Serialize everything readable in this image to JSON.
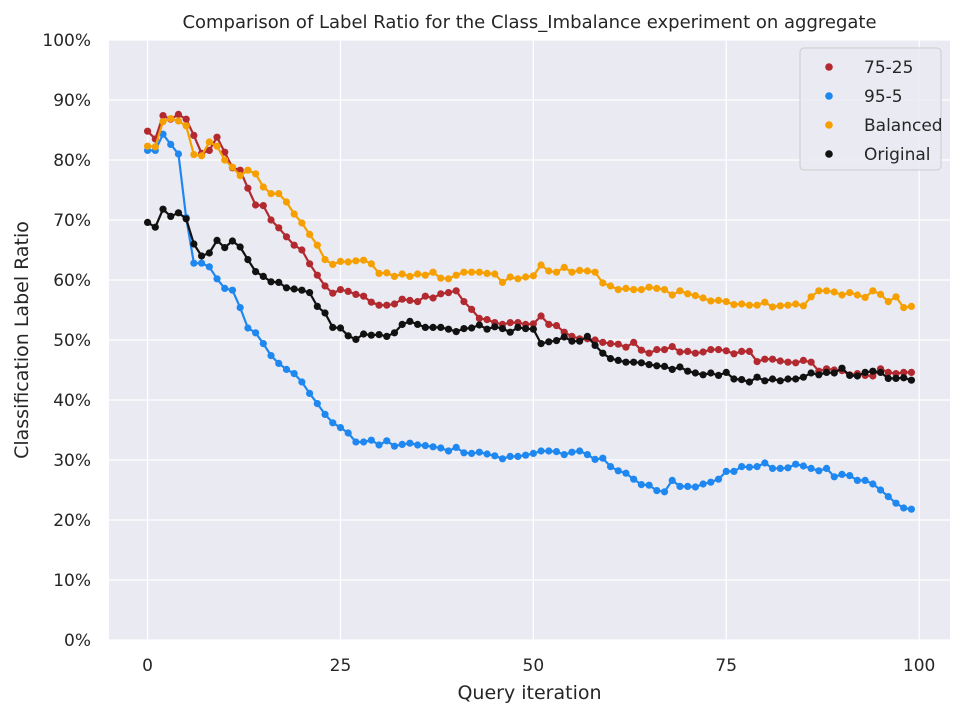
{
  "chart_data": {
    "type": "line",
    "title": "Comparison of Label Ratio for the Class_Imbalance experiment on aggregate",
    "xlabel": "Query iteration",
    "ylabel": "Classification Label Ratio",
    "xlim": [
      -5,
      104
    ],
    "ylim": [
      0,
      100
    ],
    "xticks": [
      0,
      25,
      50,
      75,
      100
    ],
    "yticks": [
      0,
      10,
      20,
      30,
      40,
      50,
      60,
      70,
      80,
      90,
      100
    ],
    "ytick_suffix": "%",
    "grid": true,
    "legend_position": "top-right",
    "x": [
      0,
      1,
      2,
      3,
      4,
      5,
      6,
      7,
      8,
      9,
      10,
      11,
      12,
      13,
      14,
      15,
      16,
      17,
      18,
      19,
      20,
      21,
      22,
      23,
      24,
      25,
      26,
      27,
      28,
      29,
      30,
      31,
      32,
      33,
      34,
      35,
      36,
      37,
      38,
      39,
      40,
      41,
      42,
      43,
      44,
      45,
      46,
      47,
      48,
      49,
      50,
      51,
      52,
      53,
      54,
      55,
      56,
      57,
      58,
      59,
      60,
      61,
      62,
      63,
      64,
      65,
      66,
      67,
      68,
      69,
      70,
      71,
      72,
      73,
      74,
      75,
      76,
      77,
      78,
      79,
      80,
      81,
      82,
      83,
      84,
      85,
      86,
      87,
      88,
      89,
      90,
      91,
      92,
      93,
      94,
      95,
      96,
      97,
      98,
      99
    ],
    "series": [
      {
        "name": "75-25",
        "color": "#b22a30",
        "values": [
          84.8,
          83.5,
          87.4,
          86.8,
          87.6,
          86.8,
          84.1,
          81.1,
          81.6,
          83.8,
          81.3,
          78.7,
          78.3,
          75.3,
          72.5,
          72.4,
          70.0,
          68.7,
          67.2,
          65.8,
          65.0,
          62.7,
          60.8,
          59.0,
          57.8,
          58.4,
          58.1,
          57.6,
          57.3,
          56.3,
          55.8,
          55.8,
          56.0,
          56.8,
          56.6,
          56.4,
          57.3,
          57.0,
          57.7,
          57.9,
          58.2,
          56.4,
          55.1,
          53.6,
          53.4,
          52.9,
          52.6,
          52.9,
          52.9,
          52.6,
          52.7,
          54.0,
          52.6,
          52.4,
          51.3,
          50.6,
          50.2,
          50.2,
          50.0,
          49.6,
          49.4,
          49.3,
          48.8,
          49.6,
          48.3,
          47.8,
          48.4,
          48.4,
          48.9,
          48.0,
          48.1,
          47.8,
          48.0,
          48.4,
          48.4,
          48.2,
          47.7,
          48.1,
          48.1,
          46.4,
          46.8,
          46.8,
          46.5,
          46.3,
          46.2,
          46.6,
          46.3,
          44.8,
          45.2,
          45.0,
          44.9,
          44.2,
          44.4,
          44.1,
          44.0,
          45.2,
          44.6,
          44.4,
          44.6,
          44.6
        ]
      },
      {
        "name": "95-5",
        "color": "#1f88f0",
        "values": [
          81.6,
          81.6,
          84.3,
          82.6,
          81.0,
          70.4,
          62.8,
          62.8,
          62.2,
          60.2,
          58.6,
          58.3,
          55.4,
          52.0,
          51.2,
          49.4,
          47.4,
          46.1,
          45.1,
          44.4,
          43.0,
          41.1,
          39.4,
          37.6,
          36.2,
          35.4,
          34.5,
          33.0,
          33.0,
          33.3,
          32.5,
          33.2,
          32.3,
          32.6,
          32.8,
          32.5,
          32.4,
          32.2,
          32.0,
          31.5,
          32.1,
          31.2,
          31.1,
          31.3,
          31.0,
          30.7,
          30.2,
          30.6,
          30.6,
          30.8,
          31.1,
          31.5,
          31.5,
          31.4,
          30.9,
          31.3,
          31.5,
          30.9,
          30.1,
          30.3,
          28.9,
          28.2,
          27.8,
          26.8,
          25.9,
          25.8,
          24.9,
          24.7,
          26.6,
          25.6,
          25.6,
          25.5,
          26.0,
          26.3,
          26.8,
          28.1,
          28.1,
          28.9,
          28.8,
          28.9,
          29.5,
          28.6,
          28.6,
          28.7,
          29.3,
          29.0,
          28.6,
          28.2,
          28.6,
          27.2,
          27.6,
          27.4,
          26.6,
          26.6,
          26.0,
          25.0,
          23.9,
          22.8,
          22.0,
          21.8
        ]
      },
      {
        "name": "Balanced",
        "color": "#f5a000",
        "values": [
          82.3,
          82.2,
          86.4,
          86.9,
          86.5,
          85.7,
          80.9,
          80.7,
          83.0,
          82.3,
          80.0,
          78.8,
          77.4,
          78.3,
          77.7,
          75.5,
          74.4,
          74.4,
          73.0,
          71.0,
          69.5,
          67.6,
          65.8,
          63.4,
          62.6,
          63.1,
          63.0,
          63.2,
          63.3,
          62.7,
          61.1,
          61.2,
          60.6,
          61.0,
          60.6,
          61.0,
          60.8,
          61.3,
          60.3,
          60.2,
          60.8,
          61.3,
          61.3,
          61.3,
          61.1,
          61.0,
          59.6,
          60.5,
          60.2,
          60.5,
          60.7,
          62.5,
          61.5,
          61.3,
          62.1,
          61.3,
          61.6,
          61.5,
          61.3,
          59.5,
          59.0,
          58.4,
          58.6,
          58.4,
          58.4,
          58.8,
          58.6,
          58.4,
          57.5,
          58.2,
          57.7,
          57.4,
          57.0,
          56.5,
          56.6,
          56.4,
          55.9,
          56.0,
          55.8,
          55.8,
          56.3,
          55.5,
          55.7,
          55.8,
          56.0,
          55.7,
          57.2,
          58.2,
          58.2,
          58.0,
          57.5,
          57.9,
          57.5,
          57.1,
          58.2,
          57.6,
          56.4,
          57.2,
          55.4,
          55.6
        ]
      },
      {
        "name": "Original",
        "color": "#111111",
        "values": [
          69.6,
          68.8,
          71.8,
          70.6,
          71.2,
          70.2,
          66.0,
          64.0,
          64.5,
          66.6,
          65.4,
          66.5,
          65.5,
          63.4,
          61.4,
          60.6,
          59.7,
          59.6,
          58.7,
          58.5,
          58.3,
          57.9,
          55.6,
          54.5,
          52.1,
          52.0,
          50.7,
          50.1,
          51.0,
          50.8,
          50.9,
          50.6,
          51.2,
          52.6,
          53.1,
          52.6,
          52.1,
          52.1,
          52.1,
          51.8,
          51.4,
          51.9,
          52.0,
          52.5,
          51.8,
          52.2,
          51.9,
          51.3,
          52.1,
          51.9,
          51.8,
          49.4,
          49.7,
          49.9,
          50.5,
          49.8,
          49.8,
          50.6,
          49.1,
          47.8,
          46.9,
          46.6,
          46.3,
          46.3,
          46.2,
          45.9,
          45.7,
          45.6,
          45.1,
          45.5,
          44.8,
          44.5,
          44.2,
          44.5,
          44.1,
          44.6,
          43.5,
          43.4,
          43.0,
          43.8,
          43.2,
          43.5,
          43.2,
          43.5,
          43.5,
          43.8,
          44.5,
          44.2,
          44.6,
          44.5,
          45.3,
          44.1,
          44.0,
          44.6,
          44.8,
          44.6,
          43.6,
          43.6,
          43.7,
          43.3
        ]
      }
    ]
  }
}
